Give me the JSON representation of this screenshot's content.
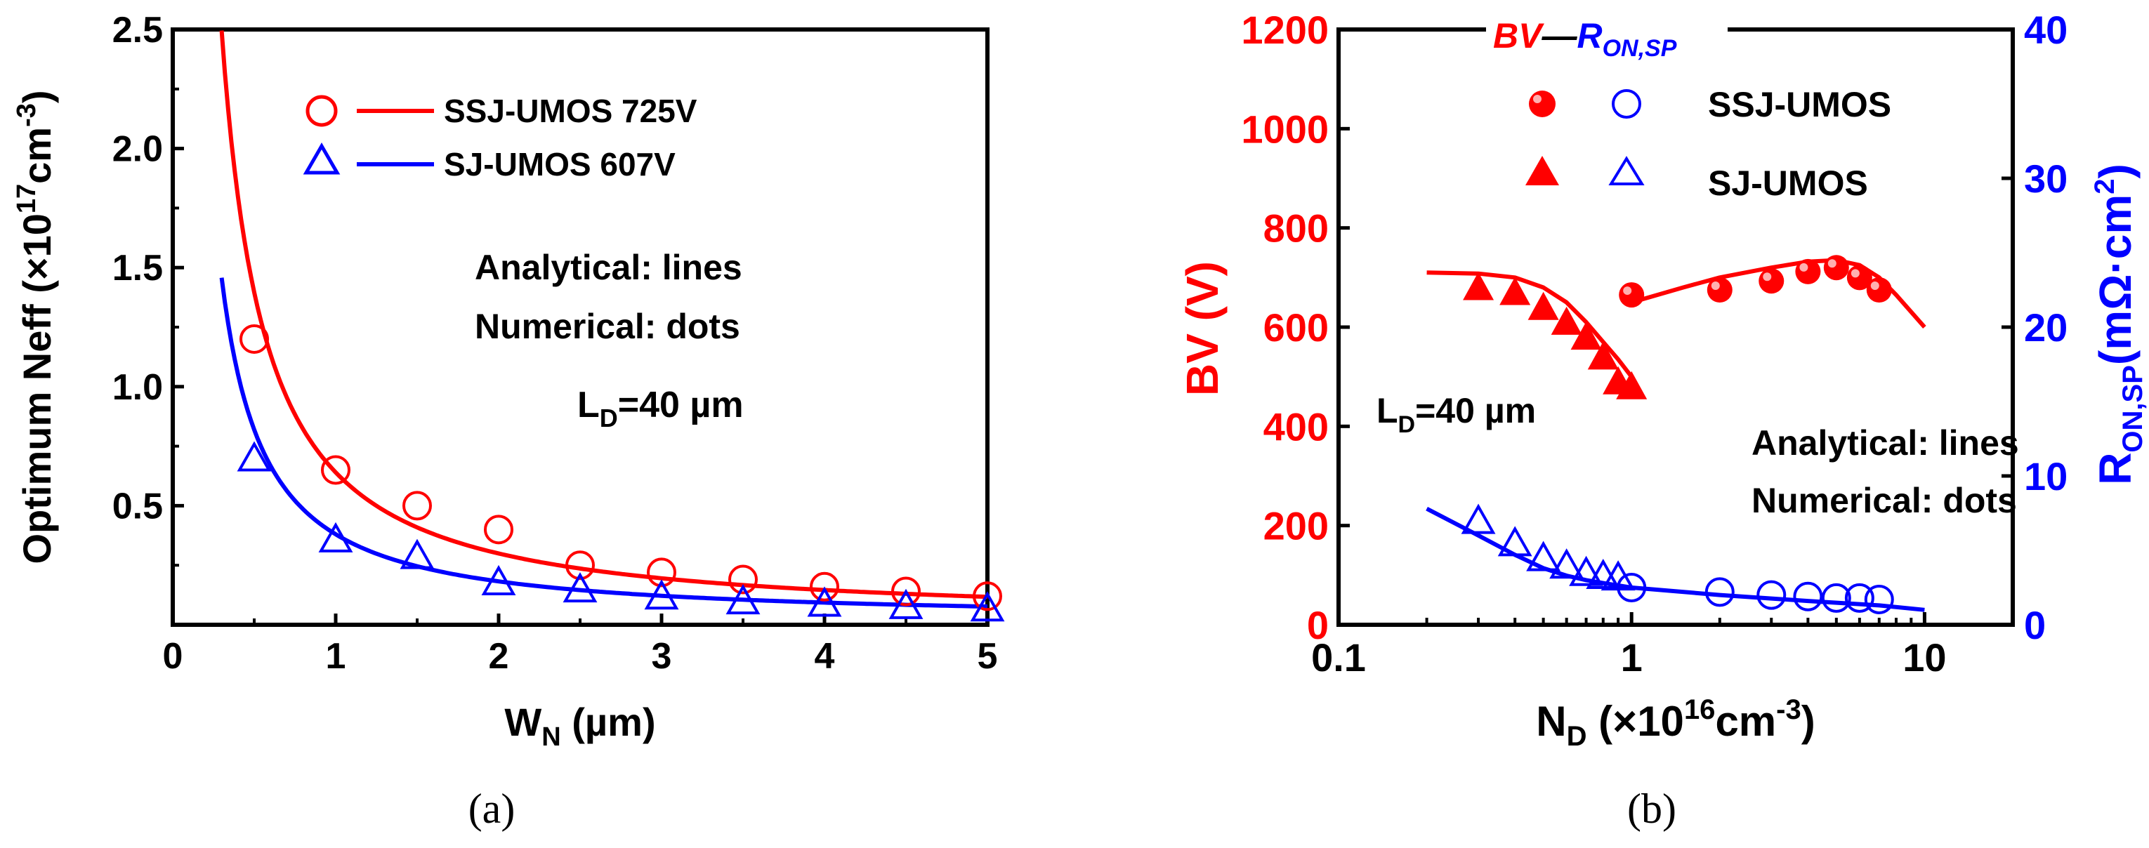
{
  "colors": {
    "red": "#ff0000",
    "blue": "#0000ff",
    "black": "#000000"
  },
  "captions": {
    "a": "(a)",
    "b": "(b)"
  },
  "chart_data": [
    {
      "id": "a",
      "type": "line",
      "xlabel": {
        "main": "W",
        "sub": "N",
        "rest": " (µm)"
      },
      "ylabel": {
        "main": "Optimum Neff (×10",
        "sup": "17",
        "rest": "cm",
        "sup2": "-3",
        "end": ")"
      },
      "xlim": [
        0,
        5
      ],
      "ylim": [
        0,
        2.5
      ],
      "xticks": [
        0,
        1,
        2,
        3,
        4,
        5
      ],
      "xtick_labels": [
        "0",
        "1",
        "2",
        "3",
        "4",
        "5"
      ],
      "yticks": [
        0.5,
        1.0,
        1.5,
        2.0,
        2.5
      ],
      "ytick_labels": [
        "0.5",
        "1.0",
        "1.5",
        "2.0",
        "2.5"
      ],
      "legend": [
        {
          "label": "SSJ-UMOS 725V",
          "marker": "circle",
          "color": "#ff0000"
        },
        {
          "label": "SJ-UMOS 607V",
          "marker": "triangle",
          "color": "#0000ff"
        }
      ],
      "annotations": {
        "line1": "Analytical: lines",
        "line2": "Numerical: dots",
        "ld_main": "L",
        "ld_sub": "D",
        "ld_rest": "=40 µm"
      },
      "series": [
        {
          "name": "SSJ-UMOS 725V",
          "color": "#ff0000",
          "marker": "circle",
          "analytical_k": 0.62,
          "points": [
            [
              0.5,
              1.2
            ],
            [
              1.0,
              0.65
            ],
            [
              1.5,
              0.5
            ],
            [
              2.0,
              0.4
            ],
            [
              2.5,
              0.25
            ],
            [
              3.0,
              0.22
            ],
            [
              3.5,
              0.19
            ],
            [
              4.0,
              0.16
            ],
            [
              4.5,
              0.14
            ],
            [
              5.0,
              0.12
            ]
          ]
        },
        {
          "name": "SJ-UMOS 607V",
          "color": "#0000ff",
          "marker": "triangle",
          "analytical_k": 0.36,
          "points": [
            [
              0.5,
              0.7
            ],
            [
              1.0,
              0.36
            ],
            [
              1.5,
              0.29
            ],
            [
              2.0,
              0.18
            ],
            [
              2.5,
              0.15
            ],
            [
              3.0,
              0.12
            ],
            [
              3.5,
              0.1
            ],
            [
              4.0,
              0.09
            ],
            [
              4.5,
              0.08
            ],
            [
              5.0,
              0.07
            ]
          ]
        }
      ]
    },
    {
      "id": "b",
      "type": "line",
      "xscale": "log",
      "xlabel": {
        "main": "N",
        "sub": "D",
        "rest": " (×10",
        "sup": "16",
        "rest2": "cm",
        "sup2": "-3",
        "end": ")"
      },
      "ylabel_left": "BV (V)",
      "ylabel_right": {
        "main": "R",
        "sub": "ON,SP",
        "rest": "(mΩ·cm",
        "sup": "2",
        "end": ")"
      },
      "xlim": [
        0.1,
        20
      ],
      "ylim_left": [
        0,
        1200
      ],
      "ylim_right": [
        0,
        40
      ],
      "xticks": [
        0.1,
        1,
        10
      ],
      "xtick_labels": [
        "0.1",
        "1",
        "10"
      ],
      "yticks_left": [
        0,
        200,
        400,
        600,
        800,
        1000,
        1200
      ],
      "ytick_labels_left": [
        "0",
        "200",
        "400",
        "600",
        "800",
        "1000",
        "1200"
      ],
      "yticks_right": [
        0,
        10,
        20,
        30,
        40
      ],
      "ytick_labels_right": [
        "0",
        "10",
        "20",
        "30",
        "40"
      ],
      "top_legend": {
        "bv": "BV",
        "dash": "—",
        "ron_main": "R",
        "ron_sub": "ON,SP"
      },
      "legend": [
        {
          "label": "SSJ-UMOS",
          "markers": [
            "filled-circle",
            "open-circle"
          ]
        },
        {
          "label": "SJ-UMOS",
          "markers": [
            "filled-triangle",
            "open-triangle"
          ]
        }
      ],
      "annotations": {
        "line1": "Analytical: lines",
        "line2": "Numerical: dots",
        "ld_main": "L",
        "ld_sub": "D",
        "ld_rest": "=40 µm"
      },
      "series": [
        {
          "name": "SJ-UMOS BV analytical",
          "axis": "left",
          "color": "#ff0000",
          "style": "line",
          "points": [
            [
              0.2,
              710
            ],
            [
              0.3,
              708
            ],
            [
              0.4,
              700
            ],
            [
              0.5,
              680
            ],
            [
              0.6,
              650
            ],
            [
              0.7,
              610
            ],
            [
              0.8,
              570
            ],
            [
              0.9,
              535
            ],
            [
              1.0,
              500
            ]
          ]
        },
        {
          "name": "SJ-UMOS BV numerical",
          "axis": "left",
          "color": "#ff0000",
          "marker": "filled-triangle",
          "points": [
            [
              0.3,
              680
            ],
            [
              0.4,
              670
            ],
            [
              0.5,
              640
            ],
            [
              0.6,
              610
            ],
            [
              0.7,
              580
            ],
            [
              0.8,
              540
            ],
            [
              0.9,
              490
            ],
            [
              1.0,
              480
            ]
          ]
        },
        {
          "name": "SSJ-UMOS BV analytical",
          "axis": "left",
          "color": "#ff0000",
          "style": "line",
          "points": [
            [
              1.0,
              650
            ],
            [
              1.5,
              680
            ],
            [
              2.0,
              700
            ],
            [
              3.0,
              720
            ],
            [
              4.0,
              732
            ],
            [
              5.0,
              735
            ],
            [
              6.0,
              725
            ],
            [
              7.0,
              700
            ],
            [
              8.0,
              665
            ],
            [
              10.0,
              600
            ]
          ]
        },
        {
          "name": "SSJ-UMOS BV numerical",
          "axis": "left",
          "color": "#ff0000",
          "marker": "filled-circle",
          "points": [
            [
              1.0,
              665
            ],
            [
              2.0,
              675
            ],
            [
              3.0,
              693
            ],
            [
              4.0,
              712
            ],
            [
              5.0,
              720
            ],
            [
              6.0,
              700
            ],
            [
              7.0,
              675
            ]
          ]
        },
        {
          "name": "Ron,sp analytical",
          "axis": "right",
          "color": "#0000ff",
          "style": "line",
          "points": [
            [
              0.2,
              7.8
            ],
            [
              0.3,
              6.0
            ],
            [
              0.4,
              4.7
            ],
            [
              0.5,
              3.8
            ],
            [
              0.6,
              3.3
            ],
            [
              0.7,
              3.0
            ],
            [
              0.8,
              2.8
            ],
            [
              1.0,
              2.5
            ],
            [
              2.0,
              2.0
            ],
            [
              4.0,
              1.6
            ],
            [
              7.0,
              1.3
            ],
            [
              10.0,
              1.0
            ]
          ]
        },
        {
          "name": "SJ-UMOS Ron,sp numerical",
          "axis": "right",
          "color": "#0000ff",
          "marker": "open-triangle",
          "points": [
            [
              0.3,
              7.0
            ],
            [
              0.4,
              5.5
            ],
            [
              0.5,
              4.5
            ],
            [
              0.6,
              4.0
            ],
            [
              0.7,
              3.5
            ],
            [
              0.8,
              3.3
            ],
            [
              0.9,
              3.2
            ]
          ]
        },
        {
          "name": "SSJ-UMOS Ron,sp numerical",
          "axis": "right",
          "color": "#0000ff",
          "marker": "open-circle",
          "points": [
            [
              1.0,
              2.5
            ],
            [
              2.0,
              2.2
            ],
            [
              3.0,
              2.0
            ],
            [
              4.0,
              1.9
            ],
            [
              5.0,
              1.8
            ],
            [
              6.0,
              1.8
            ],
            [
              7.0,
              1.7
            ]
          ]
        }
      ]
    }
  ]
}
